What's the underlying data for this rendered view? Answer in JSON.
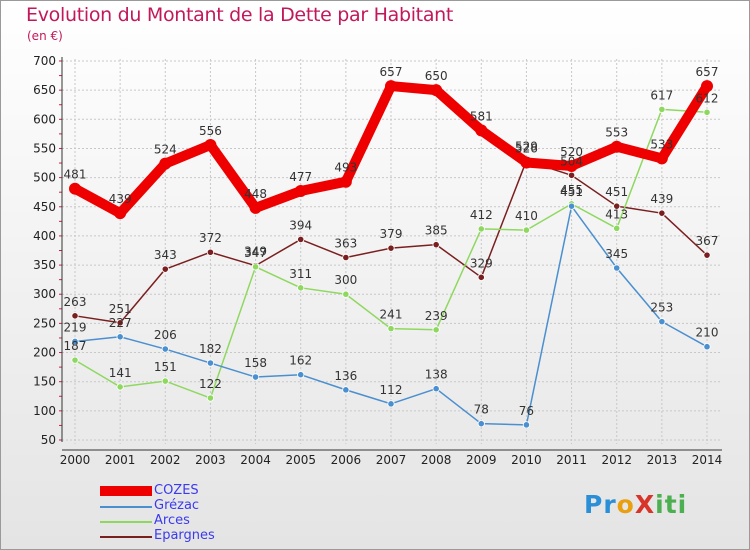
{
  "title": "Evolution du Montant de la Dette par Habitant",
  "unit": "(en €)",
  "logo": {
    "text": "ProXiti",
    "colors": [
      "#2a8fd6",
      "#e8a010",
      "#d8342a",
      "#4caf50"
    ]
  },
  "chart_data": {
    "type": "line",
    "title": "Evolution du Montant de la Dette par Habitant",
    "ylabel": "(en €)",
    "x": [
      "2000",
      "2001",
      "2002",
      "2003",
      "2004",
      "2005",
      "2006",
      "2007",
      "2008",
      "2009",
      "2010",
      "2011",
      "2012",
      "2013",
      "2014"
    ],
    "ylim": [
      50,
      700
    ],
    "yticks": [
      50,
      100,
      150,
      200,
      250,
      300,
      350,
      400,
      450,
      500,
      550,
      600,
      650,
      700
    ],
    "grid": true,
    "legend_position": "bottom-left",
    "series": [
      {
        "name": "COZES",
        "color": "#ee0000",
        "values": [
          481,
          439,
          524,
          556,
          448,
          477,
          493,
          657,
          650,
          581,
          526,
          520,
          553,
          533,
          657
        ]
      },
      {
        "name": "Grézac",
        "color": "#4a8fcf",
        "values": [
          219,
          227,
          206,
          182,
          158,
          162,
          136,
          112,
          138,
          78,
          76,
          451,
          345,
          253,
          210
        ]
      },
      {
        "name": "Arces",
        "color": "#8fd860",
        "values": [
          187,
          141,
          151,
          122,
          347,
          311,
          300,
          241,
          239,
          412,
          410,
          455,
          413,
          617,
          612
        ]
      },
      {
        "name": "Epargnes",
        "color": "#7a1f1f",
        "values": [
          263,
          251,
          343,
          372,
          349,
          394,
          363,
          379,
          385,
          329,
          529,
          504,
          451,
          439,
          367
        ]
      }
    ]
  }
}
